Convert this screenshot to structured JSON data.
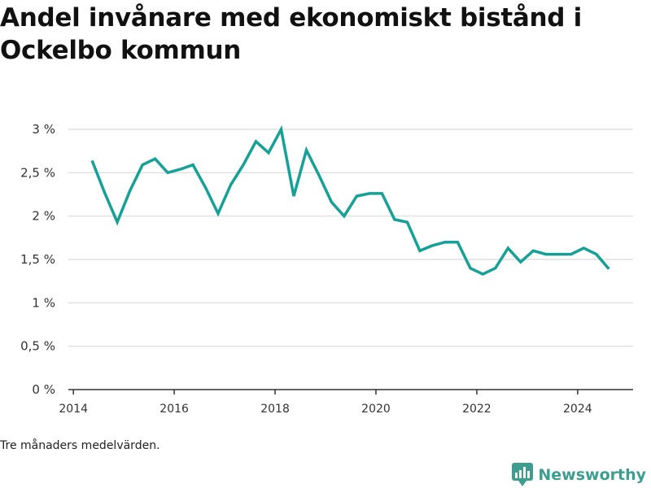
{
  "chart_data": {
    "type": "line",
    "title": "Andel invånare med ekonomiskt bistånd i Ockelbo kommun",
    "note": "Tre månaders medelvärden.",
    "x_axis": {
      "range": [
        2013.9,
        2025.1
      ],
      "ticks": [
        2014,
        2016,
        2018,
        2020,
        2022,
        2024
      ],
      "tick_labels": [
        "2014",
        "2016",
        "2018",
        "2020",
        "2022",
        "2024"
      ]
    },
    "y_axis": {
      "range": [
        0,
        3
      ],
      "ticks": [
        0,
        0.5,
        1,
        1.5,
        2,
        2.5,
        3
      ],
      "tick_labels": [
        "0 %",
        "0,5 %",
        "1 %",
        "1,5 %",
        "2 %",
        "2,5 %",
        "3 %"
      ],
      "grid": true
    },
    "series": [
      {
        "color": "#15a196",
        "points": [
          [
            2014.37,
            2.64
          ],
          [
            2014.62,
            2.27
          ],
          [
            2014.87,
            1.93
          ],
          [
            2015.12,
            2.29
          ],
          [
            2015.37,
            2.59
          ],
          [
            2015.62,
            2.66
          ],
          [
            2015.87,
            2.5
          ],
          [
            2016.12,
            2.54
          ],
          [
            2016.37,
            2.59
          ],
          [
            2016.62,
            2.33
          ],
          [
            2016.87,
            2.03
          ],
          [
            2017.12,
            2.36
          ],
          [
            2017.37,
            2.59
          ],
          [
            2017.62,
            2.86
          ],
          [
            2017.87,
            2.73
          ],
          [
            2018.12,
            3.0
          ],
          [
            2018.37,
            2.23
          ],
          [
            2018.62,
            2.76
          ],
          [
            2018.87,
            2.47
          ],
          [
            2019.12,
            2.16
          ],
          [
            2019.37,
            2.0
          ],
          [
            2019.62,
            2.23
          ],
          [
            2019.87,
            2.26
          ],
          [
            2020.12,
            2.26
          ],
          [
            2020.37,
            1.96
          ],
          [
            2020.62,
            1.93
          ],
          [
            2020.87,
            1.6
          ],
          [
            2021.12,
            1.66
          ],
          [
            2021.37,
            1.7
          ],
          [
            2021.62,
            1.7
          ],
          [
            2021.87,
            1.4
          ],
          [
            2022.12,
            1.33
          ],
          [
            2022.37,
            1.4
          ],
          [
            2022.62,
            1.63
          ],
          [
            2022.87,
            1.47
          ],
          [
            2023.12,
            1.6
          ],
          [
            2023.37,
            1.56
          ],
          [
            2023.62,
            1.56
          ],
          [
            2023.87,
            1.56
          ],
          [
            2024.12,
            1.63
          ],
          [
            2024.37,
            1.56
          ],
          [
            2024.62,
            1.39
          ]
        ]
      }
    ]
  },
  "branding": {
    "name": "Newsworthy",
    "color": "#3d9e8f",
    "icon": "newsworthy-logo-icon"
  }
}
